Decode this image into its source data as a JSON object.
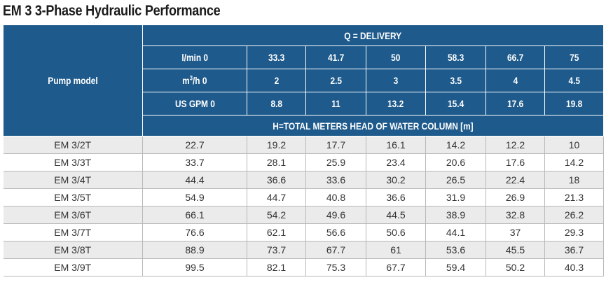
{
  "title": "EM 3 3-Phase Hydraulic Performance",
  "header": {
    "pump_model_label": "Pump model",
    "delivery_label": "Q = DELIVERY",
    "lmin_label": "l/min 0",
    "m3h_label_prefix": "m",
    "m3h_label_sup": "3",
    "m3h_label_suffix": "/h 0",
    "gpm_label": "US GPM 0",
    "lmin_values": [
      "33.3",
      "41.7",
      "50",
      "58.3",
      "66.7",
      "75"
    ],
    "m3h_values": [
      "2",
      "2.5",
      "3",
      "3.5",
      "4",
      "4.5"
    ],
    "gpm_values": [
      "8.8",
      "11",
      "13.2",
      "15.4",
      "17.6",
      "19.8"
    ],
    "head_label": "H=TOTAL METERS HEAD OF WATER COLUMN [m]"
  },
  "rows": [
    {
      "model": "EM 3/2T",
      "values": [
        "22.7",
        "19.2",
        "17.7",
        "16.1",
        "14.2",
        "12.2",
        "10"
      ]
    },
    {
      "model": "EM 3/3T",
      "values": [
        "33.7",
        "28.1",
        "25.9",
        "23.4",
        "20.6",
        "17.6",
        "14.2"
      ]
    },
    {
      "model": "EM 3/4T",
      "values": [
        "44.4",
        "36.6",
        "33.6",
        "30.2",
        "26.5",
        "22.4",
        "18"
      ]
    },
    {
      "model": "EM 3/5T",
      "values": [
        "54.9",
        "44.7",
        "40.8",
        "36.6",
        "31.9",
        "26.9",
        "21.3"
      ]
    },
    {
      "model": "EM 3/6T",
      "values": [
        "66.1",
        "54.2",
        "49.6",
        "44.5",
        "38.9",
        "32.8",
        "26.2"
      ]
    },
    {
      "model": "EM 3/7T",
      "values": [
        "76.6",
        "62.1",
        "56.6",
        "50.6",
        "44.1",
        "37",
        "29.3"
      ]
    },
    {
      "model": "EM 3/8T",
      "values": [
        "88.9",
        "73.7",
        "67.7",
        "61",
        "53.6",
        "45.5",
        "36.7"
      ]
    },
    {
      "model": "EM 3/9T",
      "values": [
        "99.5",
        "82.1",
        "75.3",
        "67.7",
        "59.4",
        "50.2",
        "40.3"
      ]
    }
  ],
  "colors": {
    "header_bg": "#1e5a8c",
    "row_alt_bg": "#ebebeb"
  }
}
